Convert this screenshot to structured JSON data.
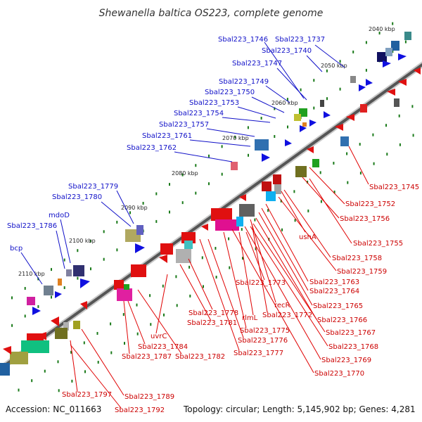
{
  "title": "Shewanella baltica OS223, complete genome",
  "footer": {
    "accession": "Accession: NC_011663",
    "summary": "Topology: circular; Length: 5,145,902 bp; Genes: 4,281"
  },
  "colors": {
    "backbone": "#888888",
    "forward_label": "#1010c8",
    "reverse_label": "#cc0000",
    "tick_dot": "#1a7a1a"
  },
  "ticks": [
    "2040 kbp",
    "2050 kbp",
    "2060 kbp",
    "2070 kbp",
    "2080 kbp",
    "2090 kbp",
    "2100 kbp",
    "2110 kbp"
  ],
  "forward_labels": [
    "Sbal223_1746",
    "Sbal223_1737",
    "Sbal223_1740",
    "Sbal223_1747",
    "Sbal223_1749",
    "Sbal223_1750",
    "Sbal223_1753",
    "Sbal223_1754",
    "Sbal223_1757",
    "Sbal223_1761",
    "Sbal223_1762",
    "Sbal223_1779",
    "Sbal223_1780",
    "mdoD",
    "Sbal223_1786",
    "bcp"
  ],
  "reverse_labels": [
    "Sbal223_1745",
    "Sbal223_1752",
    "Sbal223_1756",
    "Sbal223_1755",
    "ushA",
    "Sbal223_1758",
    "Sbal223_1759",
    "Sbal223_1763",
    "Sbal223_1773",
    "Sbal223_1764",
    "recR",
    "Sbal223_1765",
    "Sbal223_1772",
    "Sbal223_1778",
    "rlmL",
    "Sbal223_1766",
    "Sbal223_1781",
    "Sbal223_1775",
    "Sbal223_1767",
    "Sbal223_1776",
    "uvrC",
    "Sbal223_1768",
    "Sbal223_1784",
    "Sbal223_1777",
    "Sbal223_1787",
    "Sbal223_1782",
    "Sbal223_1769",
    "Sbal223_1770",
    "Sbal223_1797",
    "Sbal223_1789",
    "Sbal223_1792"
  ]
}
